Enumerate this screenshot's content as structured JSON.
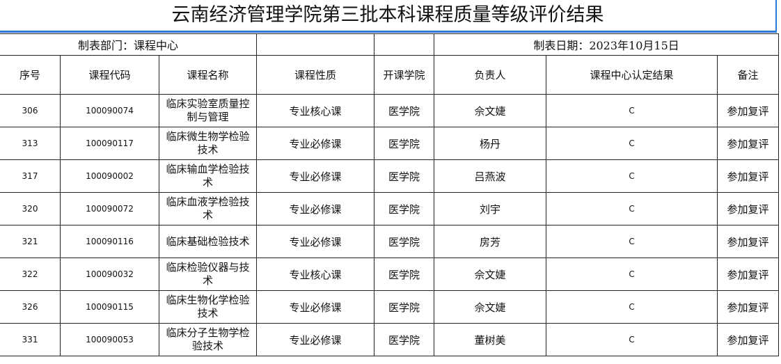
{
  "title": "云南经济管理学院第三批本科课程质量等级评价结果",
  "meta": {
    "dept": "制表部门：课程中心",
    "date": "制表日期：2023年10月15日"
  },
  "headers": [
    "序号",
    "课程代码",
    "课程名称",
    "课程性质",
    "开课学院",
    "负责人",
    "课程中心认定结果",
    "备注"
  ],
  "rows": [
    [
      "306",
      "100090074",
      "临床实验室质量控制与管理",
      "专业核心课",
      "医学院",
      "佘文婕",
      "C",
      "参加复评"
    ],
    [
      "313",
      "100090117",
      "临床微生物学检验技术",
      "专业必修课",
      "医学院",
      "杨丹",
      "C",
      "参加复评"
    ],
    [
      "317",
      "100090002",
      "临床输血学检验技术",
      "专业必修课",
      "医学院",
      "吕燕波",
      "C",
      "参加复评"
    ],
    [
      "320",
      "100090072",
      "临床血液学检验技术",
      "专业必修课",
      "医学院",
      "刘宇",
      "C",
      "参加复评"
    ],
    [
      "321",
      "100090116",
      "临床基础检验技术",
      "专业必修课",
      "医学院",
      "房芳",
      "C",
      "参加复评"
    ],
    [
      "322",
      "100090032",
      "临床检验仪器与技术",
      "专业核心课",
      "医学院",
      "佘文婕",
      "C",
      "参加复评"
    ],
    [
      "326",
      "100090115",
      "临床生物化学检验技术",
      "专业必修课",
      "医学院",
      "佘文婕",
      "C",
      "参加复评"
    ],
    [
      "331",
      "100090053",
      "临床分子生物学检验技术",
      "专业必修课",
      "医学院",
      "董树美",
      "C",
      "参加复评"
    ]
  ]
}
